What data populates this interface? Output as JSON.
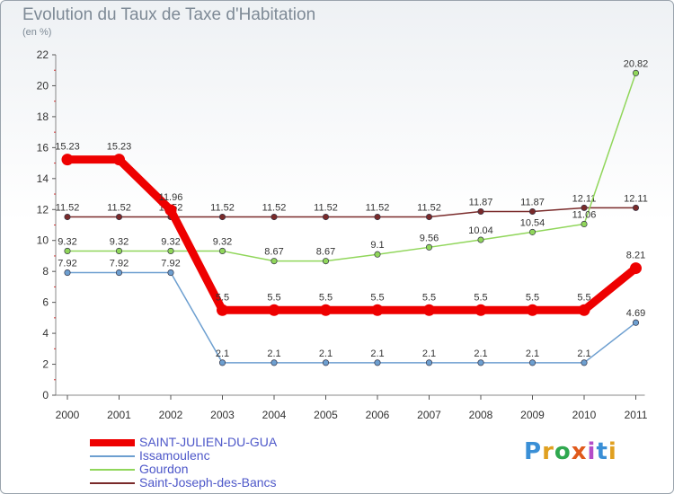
{
  "title": "Evolution du Taux de Taxe d'Habitation",
  "subtitle": "(en %)",
  "logo": {
    "text": "Proxiti",
    "colors": [
      "#3a8fd6",
      "#e0a020",
      "#2fa84f",
      "#e05a1c",
      "#b44dc8",
      "#3a8fd6",
      "#e0a020"
    ]
  },
  "chart_data": {
    "type": "line",
    "x": [
      "2000",
      "2001",
      "2002",
      "2003",
      "2004",
      "2005",
      "2006",
      "2007",
      "2008",
      "2009",
      "2010",
      "2011"
    ],
    "ylim": [
      0,
      22
    ],
    "yticks": [
      "0",
      "2",
      "4",
      "6",
      "8",
      "10",
      "12",
      "14",
      "16",
      "18",
      "20",
      "22"
    ],
    "grid": false,
    "legend_position": "bottom-left",
    "series": [
      {
        "name": "Saint-Joseph-des-Bancs",
        "color": "#7a2a2a",
        "values": [
          11.52,
          11.52,
          11.52,
          11.52,
          11.52,
          11.52,
          11.52,
          11.52,
          11.87,
          11.87,
          12.11,
          12.11
        ],
        "labels": [
          "11.52",
          "11.52",
          "11.52",
          "11.52",
          "11.52",
          "11.52",
          "11.52",
          "11.52",
          "11.87",
          "11.87",
          "12.11",
          "12.11"
        ]
      },
      {
        "name": "Gourdon",
        "color": "#90d65a",
        "values": [
          9.32,
          9.32,
          9.32,
          9.32,
          8.67,
          8.67,
          9.1,
          9.56,
          10.04,
          10.54,
          11.06,
          20.82
        ],
        "labels": [
          "9.32",
          "9.32",
          "9.32",
          "9.32",
          "8.67",
          "8.67",
          "9.1",
          "9.56",
          "10.04",
          "10.54",
          "11.06",
          "20.82"
        ]
      },
      {
        "name": "Issamoulenc",
        "color": "#6d9fd0",
        "values": [
          7.92,
          7.92,
          7.92,
          2.1,
          2.1,
          2.1,
          2.1,
          2.1,
          2.1,
          2.1,
          2.1,
          4.69
        ],
        "labels": [
          "7.92",
          "7.92",
          "7.92",
          "2.1",
          "2.1",
          "2.1",
          "2.1",
          "2.1",
          "2.1",
          "2.1",
          "2.1",
          "4.69"
        ]
      },
      {
        "name": "SAINT-JULIEN-DU-GUA",
        "color": "#ee0000",
        "values": [
          15.23,
          15.23,
          11.96,
          5.5,
          5.5,
          5.5,
          5.5,
          5.5,
          5.5,
          5.5,
          5.5,
          8.21
        ],
        "labels": [
          "15.23",
          "15.23",
          "11.96",
          "5.5",
          "5.5",
          "5.5",
          "5.5",
          "5.5",
          "5.5",
          "5.5",
          "5.5",
          "8.21"
        ]
      }
    ],
    "legend": [
      "SAINT-JULIEN-DU-GUA",
      "Issamoulenc",
      "Gourdon",
      "Saint-Joseph-des-Bancs"
    ]
  }
}
